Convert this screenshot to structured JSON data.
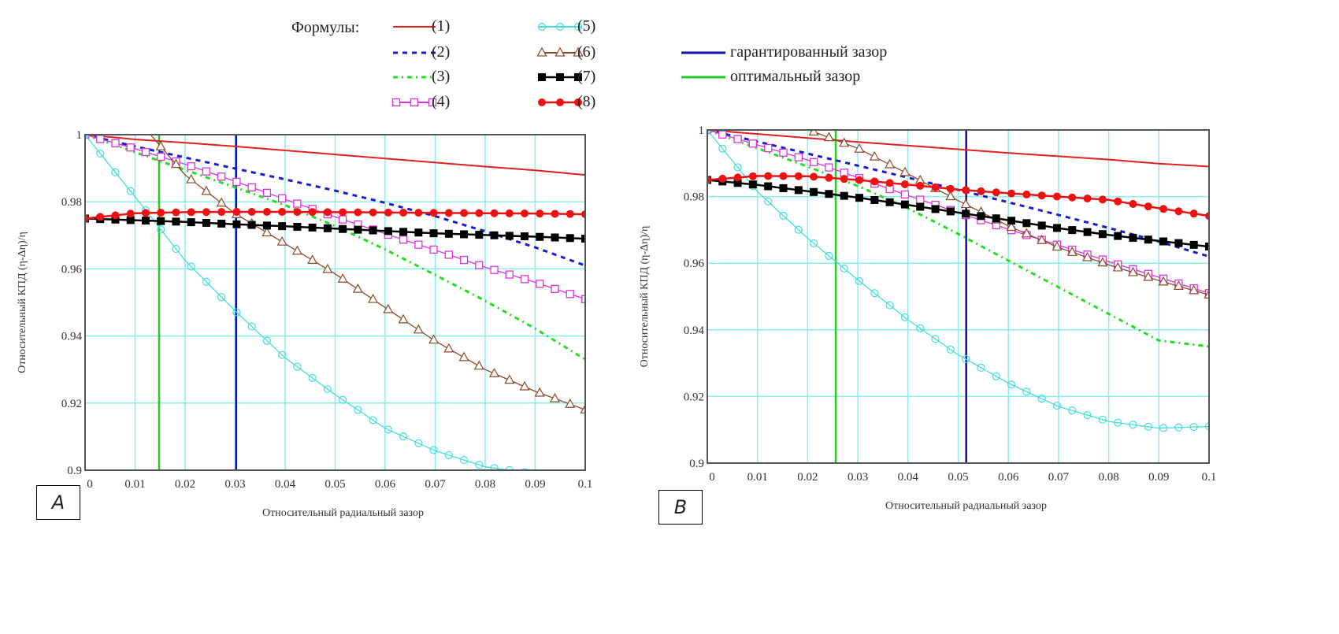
{
  "legend": {
    "title": "Формулы:",
    "entries": [
      {
        "key": "f1",
        "label": "(1)"
      },
      {
        "key": "f2",
        "label": "(2)"
      },
      {
        "key": "f3",
        "label": "(3)"
      },
      {
        "key": "f4",
        "label": "(4)"
      },
      {
        "key": "f5",
        "label": "(5)"
      },
      {
        "key": "f6",
        "label": "(6)"
      },
      {
        "key": "f7",
        "label": "(7)"
      },
      {
        "key": "f8",
        "label": "(8)"
      }
    ],
    "markers": [
      {
        "key": "guaranteed",
        "label": "гарантированный зазор"
      },
      {
        "key": "optimal",
        "label": "оптимальный зазор"
      }
    ]
  },
  "styles": {
    "f1": {
      "color": "#e02020",
      "dash": "",
      "marker": "none"
    },
    "f2": {
      "color": "#1a1ad0",
      "dash": "6,6",
      "marker": "none"
    },
    "f3": {
      "color": "#22dd22",
      "dash": "6,5,2,5",
      "marker": "none"
    },
    "f4": {
      "color": "#dd33dd",
      "dash": "",
      "marker": "square-open"
    },
    "f5": {
      "color": "#44dddd",
      "dash": "",
      "marker": "circle-open"
    },
    "f6": {
      "color": "#8b4a2b",
      "dash": "",
      "marker": "triangle-open"
    },
    "f7": {
      "color": "#000000",
      "dash": "",
      "marker": "square-filled"
    },
    "f8": {
      "color": "#ee1111",
      "dash": "",
      "marker": "circle-filled"
    },
    "guaranteed": {
      "color": "#1010b0"
    },
    "optimal": {
      "color": "#22cc22"
    },
    "grid": "#88eeee"
  },
  "chart_data": [
    {
      "panel": "A",
      "type": "line",
      "xlabel": "Относительный радиальный зазор",
      "ylabel": "Относительный КПД   (η-Δη)/η",
      "xlim": [
        0,
        0.1
      ],
      "ylim": [
        0.9,
        1.0
      ],
      "xticks": [
        "0",
        "0.01",
        "0.02",
        "0.03",
        "0.04",
        "0.05",
        "0.06",
        "0.07",
        "0.08",
        "0.09",
        "0.1"
      ],
      "yticks": [
        "0.9",
        "0.92",
        "0.94",
        "0.96",
        "0.98",
        "1"
      ],
      "grid": true,
      "vlines": {
        "optimal": 0.0148,
        "guaranteed": 0.0302
      },
      "x": [
        0,
        0.01,
        0.02,
        0.03,
        0.04,
        0.05,
        0.06,
        0.07,
        0.08,
        0.09,
        0.1
      ],
      "series": [
        {
          "name": "(1)",
          "key": "f1",
          "values": [
            1.0,
            0.9986,
            0.9976,
            0.9965,
            0.9953,
            0.9941,
            0.9929,
            0.9917,
            0.9905,
            0.9894,
            0.988
          ]
        },
        {
          "name": "(2)",
          "key": "f2",
          "values": [
            1.0,
            0.9965,
            0.9932,
            0.9899,
            0.9867,
            0.9833,
            0.9797,
            0.9757,
            0.9712,
            0.9664,
            0.961
          ]
        },
        {
          "name": "(3)",
          "key": "f3",
          "values": [
            1.0,
            0.9948,
            0.9895,
            0.9843,
            0.979,
            0.9728,
            0.9658,
            0.9582,
            0.9505,
            0.9422,
            0.933
          ]
        },
        {
          "name": "(4)",
          "key": "f4",
          "values": [
            1.0,
            0.9958,
            0.9912,
            0.9861,
            0.9807,
            0.9755,
            0.9705,
            0.9656,
            0.9605,
            0.956,
            0.951
          ]
        },
        {
          "name": "(5)",
          "key": "f5",
          "values": [
            1.0,
            0.9815,
            0.9625,
            0.9475,
            0.9335,
            0.9225,
            0.9125,
            0.9058,
            0.901,
            0.899,
            0.899
          ]
        },
        {
          "name": "(6)",
          "key": "f6",
          "x": [
            0.0131,
            0.02,
            0.03,
            0.04,
            0.05,
            0.06,
            0.07,
            0.08,
            0.09,
            0.1
          ],
          "values": [
            1.0,
            0.988,
            0.9765,
            0.9675,
            0.9585,
            0.9485,
            0.9385,
            0.93,
            0.9235,
            0.918
          ]
        },
        {
          "name": "(7)",
          "key": "f7",
          "values": [
            0.975,
            0.9745,
            0.974,
            0.9733,
            0.9727,
            0.972,
            0.9713,
            0.9706,
            0.9701,
            0.9696,
            0.969
          ]
        },
        {
          "name": "(8)",
          "key": "f8",
          "values": [
            0.975,
            0.9766,
            0.9769,
            0.977,
            0.977,
            0.9769,
            0.9768,
            0.9767,
            0.9766,
            0.9765,
            0.9763
          ]
        }
      ]
    },
    {
      "panel": "B",
      "type": "line",
      "xlabel": "Относительный радиальный зазор",
      "ylabel": "Относительный КПД   (η-Δη)/η",
      "xlim": [
        0,
        0.1
      ],
      "ylim": [
        0.9,
        1.0
      ],
      "xticks": [
        "0",
        "0.01",
        "0.02",
        "0.03",
        "0.04",
        "0.05",
        "0.06",
        "0.07",
        "0.08",
        "0.09",
        "0.1"
      ],
      "yticks": [
        "0.9",
        "0.92",
        "0.94",
        "0.96",
        "0.98",
        "1"
      ],
      "grid": true,
      "vlines": {
        "optimal": 0.0256,
        "guaranteed": 0.0516
      },
      "x": [
        0,
        0.01,
        0.02,
        0.03,
        0.04,
        0.05,
        0.06,
        0.07,
        0.08,
        0.09,
        0.1
      ],
      "series": [
        {
          "name": "(1)",
          "key": "f1",
          "values": [
            1.0,
            0.9988,
            0.9976,
            0.9964,
            0.9953,
            0.9942,
            0.9931,
            0.9921,
            0.9911,
            0.9899,
            0.989
          ]
        },
        {
          "name": "(2)",
          "key": "f2",
          "values": [
            1.0,
            0.9965,
            0.9929,
            0.9893,
            0.9857,
            0.982,
            0.9783,
            0.9745,
            0.9706,
            0.9665,
            0.962
          ]
        },
        {
          "name": "(3)",
          "key": "f3",
          "values": [
            1.0,
            0.9945,
            0.989,
            0.9832,
            0.9765,
            0.9688,
            0.9608,
            0.9528,
            0.9448,
            0.9368,
            0.935
          ]
        },
        {
          "name": "(4)",
          "key": "f4",
          "values": [
            1.0,
            0.9955,
            0.991,
            0.9857,
            0.9803,
            0.9752,
            0.9702,
            0.9654,
            0.9605,
            0.9558,
            0.951
          ]
        },
        {
          "name": "(5)",
          "key": "f5",
          "values": [
            1.0,
            0.9815,
            0.9675,
            0.955,
            0.943,
            0.9325,
            0.924,
            0.917,
            0.9125,
            0.9105,
            0.911
          ]
        },
        {
          "name": "(6)",
          "key": "f6",
          "x": [
            0.0202,
            0.03,
            0.04,
            0.05,
            0.06,
            0.07,
            0.08,
            0.09,
            0.1
          ],
          "values": [
            1.0,
            0.9945,
            0.9868,
            0.9788,
            0.9712,
            0.9647,
            0.9595,
            0.9548,
            0.9505
          ]
        },
        {
          "name": "(7)",
          "key": "f7",
          "values": [
            0.985,
            0.9835,
            0.9816,
            0.9797,
            0.9775,
            0.9752,
            0.9729,
            0.9705,
            0.9685,
            0.9667,
            0.965
          ]
        },
        {
          "name": "(8)",
          "key": "f8",
          "values": [
            0.985,
            0.9862,
            0.9861,
            0.985,
            0.9836,
            0.9821,
            0.981,
            0.98,
            0.979,
            0.9765,
            0.9742
          ]
        }
      ]
    }
  ]
}
